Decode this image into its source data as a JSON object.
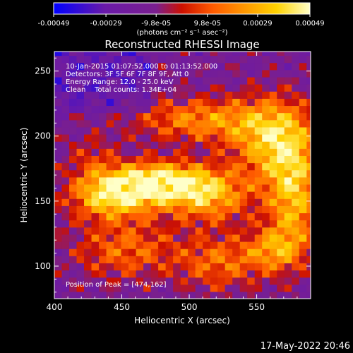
{
  "chart_data": {
    "type": "heatmap",
    "title": "Reconstructed RHESSI Image",
    "xlabel": "Heliocentric X (arcsec)",
    "ylabel": "Heliocentric Y (arcsec)",
    "xlim": [
      400,
      590
    ],
    "ylim": [
      75,
      265
    ],
    "x_ticks": [
      400,
      450,
      500,
      550
    ],
    "y_ticks": [
      100,
      150,
      200,
      250
    ],
    "colorbar": {
      "min": -0.00049,
      "max": 0.00049,
      "tick_values": [
        -0.00049,
        -0.00029,
        -9.8e-05,
        9.8e-05,
        0.00029,
        0.00049
      ],
      "tick_labels": [
        "-0.00049",
        "-0.00029",
        "-9.8e-05",
        "9.8e-05",
        "0.00029",
        "0.00049"
      ],
      "unit_label": "(photons cm⁻² s⁻¹ asec⁻²)",
      "colors": [
        "#0000ff",
        "#6a1aa8",
        "#7a1f8f",
        "#cc1000",
        "#ff5a00",
        "#ff9a00",
        "#ffd200",
        "#ffffc8"
      ]
    },
    "annotations": [
      "10-Jan-2015 01:07:52.000 to 01:13:52.000",
      "Detectors: 3F 5F 6F 7F 8F 9F, Att 0",
      "Energy Range: 12.0 - 25.0 keV",
      "Clean    Total counts: 1.34E+04"
    ],
    "peak_label": "Position of Peak = [474,162]",
    "peak": [
      474,
      162
    ],
    "sources": [
      {
        "x": 474,
        "y": 162,
        "amp": 1.0,
        "sx": 28,
        "sy": 11
      },
      {
        "x": 440,
        "y": 150,
        "amp": 0.75,
        "sx": 22,
        "sy": 12
      },
      {
        "x": 512,
        "y": 150,
        "amp": 0.6,
        "sx": 22,
        "sy": 14
      },
      {
        "x": 560,
        "y": 195,
        "amp": 0.75,
        "sx": 22,
        "sy": 22
      },
      {
        "x": 575,
        "y": 150,
        "amp": 0.7,
        "sx": 14,
        "sy": 30
      },
      {
        "x": 505,
        "y": 210,
        "amp": 0.55,
        "sx": 34,
        "sy": 12
      },
      {
        "x": 450,
        "y": 110,
        "amp": 0.45,
        "sx": 28,
        "sy": 16
      },
      {
        "x": 520,
        "y": 100,
        "amp": 0.45,
        "sx": 22,
        "sy": 15
      },
      {
        "x": 560,
        "y": 110,
        "amp": 0.5,
        "sx": 15,
        "sy": 12
      },
      {
        "x": 425,
        "y": 180,
        "amp": 0.25,
        "sx": 14,
        "sy": 14
      }
    ],
    "timestamp": "17-May-2022 20:46"
  }
}
